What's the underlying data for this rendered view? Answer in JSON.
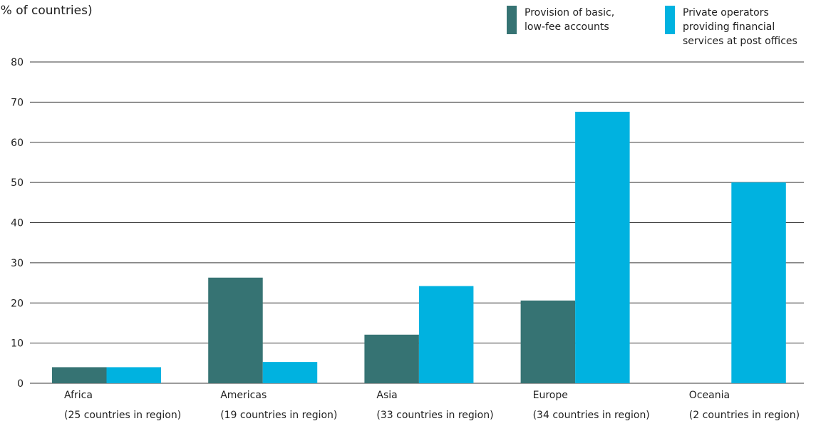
{
  "chart_data": {
    "type": "bar",
    "unit_label": "(% of countries)",
    "categories": [
      [
        "Africa",
        "(25 countries in region)"
      ],
      [
        "Americas",
        "(19 countries in region)"
      ],
      [
        "Asia",
        "(33 countries in region)"
      ],
      [
        "Europe",
        "(34 countries in region)"
      ],
      [
        "Oceania",
        "(2 countries in region)"
      ]
    ],
    "series": [
      {
        "name": [
          "Provision of basic,",
          "low-fee accounts"
        ],
        "color": "#367373",
        "values": [
          4,
          26.3,
          12.1,
          20.6,
          0
        ]
      },
      {
        "name": [
          "Private operators",
          "providing financial",
          "services at post offices"
        ],
        "color": "#00b2e0",
        "values": [
          4,
          5.3,
          24.2,
          67.6,
          50
        ]
      }
    ],
    "ylim": [
      0,
      80
    ],
    "y_ticks": [
      0,
      10,
      20,
      30,
      40,
      50,
      60,
      70,
      80
    ],
    "grid": true,
    "legend_position": "top-right"
  }
}
